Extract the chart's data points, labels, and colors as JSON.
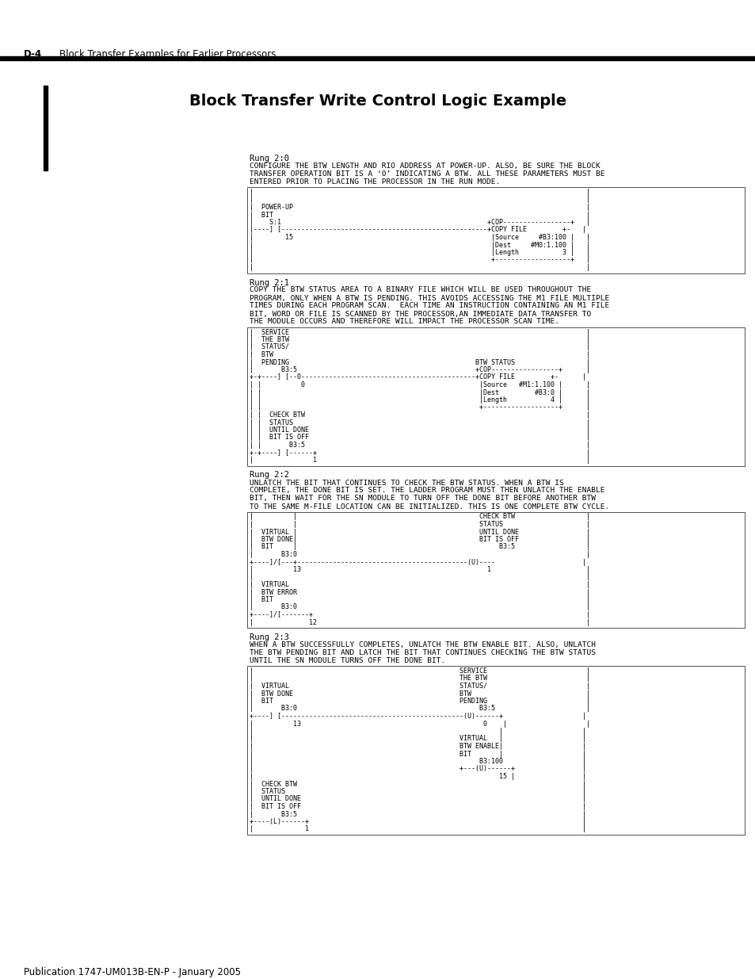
{
  "bg_color": "#ffffff",
  "header_label": "D-4",
  "header_desc": "Block Transfer Examples for Earlier Processors",
  "title": "Block Transfer Write Control Logic Example",
  "footer_text": "Publication 1747-UM013B-EN-P - January 2005",
  "rung0_desc": [
    "Rung 2:0",
    "CONFIGURE THE BTW LENGTH AND RIO ADDRESS AT POWER-UP. ALSO, BE SURE THE BLOCK",
    "TRANSFER OPERATION BIT IS A ‘0’ INDICATING A BTW. ALL THESE PARAMETERS MUST BE",
    "ENTERED PRIOR TO PLACING THE PROCESSOR IN THE RUN MODE."
  ],
  "rung0_ladder": [
    "|                                                                                    |",
    "|                                                                                    |",
    "|  POWER-UP                                                                          |",
    "|  BIT                                                                               |",
    "|    S:1                                                    +COP-----------------+   |",
    "|----] [----------------------------------------------------+COPY FILE         +-   |",
    "|        15                                                  |Source     #B3:100 |   |",
    "|                                                            |Dest     #M0:1.100 |   |",
    "|                                                            |Length           3 |   |",
    "|                                                            +-------------------+   |",
    "|                                                                                    |"
  ],
  "rung1_desc": [
    "Rung 2:1",
    "COPY THE BTW STATUS AREA TO A BINARY FILE WHICH WILL BE USED THROUGHOUT THE",
    "PROGRAM, ONLY WHEN A BTW IS PENDING. THIS AVOIDS ACCESSING THE M1 FILE MULTIPLE",
    "TIMES DURING EACH PROGRAM SCAN.  EACH TIME AN INSTRUCTION CONTAINING AN M1 FILE",
    "BIT, WORD OR FILE IS SCANNED BY THE PROCESSOR,AN IMMEDIATE DATA TRANSFER TO",
    "THE MODULE OCCURS AND THEREFORE WILL IMPACT THE PROCESSOR SCAN TIME."
  ],
  "rung1_ladder": [
    "|  SERVICE                                                                           |",
    "|  THE BTW                                                                           |",
    "|  STATUS/                                                                           |",
    "|  BTW                                                                               |",
    "|  PENDING                                               BTW STATUS                  |",
    "|       B3:5                                             +COP-----------------+      |",
    "+-+----] [--0--------------------------------------------+COPY FILE         +-      |",
    "| |          0                                            |Source   #M1:1.100 |      |",
    "| |                                                       |Dest         #B3:0 |      |",
    "| |                                                       |Length           4 |      |",
    "| |                                                       +-------------------+      |",
    "| |  CHECK BTW                                                                       |",
    "| |  STATUS                                                                          |",
    "| |  UNTIL DONE                                                                      |",
    "| |  BIT IS OFF                                                                      |",
    "| |       B3:5                                                                       |",
    "+-+----] [------+                                                                    |",
    "|               1                                                                    |"
  ],
  "rung2_desc": [
    "Rung 2:2",
    "UNLATCH THE BIT THAT CONTINUES TO CHECK THE BTW STATUS. WHEN A BTW IS",
    "COMPLETE, THE DONE BIT IS SET. THE LADDER PROGRAM MUST THEN UNLATCH THE ENABLE",
    "BIT, THEN WAIT FOR THE SN MODULE TO TURN OFF THE DONE BIT BEFORE ANOTHER BTW",
    "TO THE SAME M-FILE LOCATION CAN BE INITIALIZED. THIS IS ONE COMPLETE BTW CYCLE."
  ],
  "rung2_ladder": [
    "|          |                                              CHECK BTW                  |",
    "|          |                                              STATUS                     |",
    "|  VIRTUAL |                                              UNTIL DONE                 |",
    "|  BTW DONE|                                              BIT IS OFF                 |",
    "|  BIT     |                                                   B3:5                  |",
    "|       B3:0                                                                         |",
    "+----]/[---+-------------------------------------------(U)----                      |",
    "|          13                                               1                        |",
    "|                                                                                    |",
    "|  VIRTUAL                                                                           |",
    "|  BTW ERROR                                                                         |",
    "|  BIT                                                                               |",
    "|       B3:0                                                                         |",
    "+----]/[-------+                                                                     |",
    "|              12                                                                    |"
  ],
  "rung3_desc": [
    "Rung 2:3",
    "WHEN A BTW SUCCESSFULLY COMPLETES, UNLATCH THE BTW ENABLE BIT. ALSO, UNLATCH",
    "THE BTW PENDING BIT AND LATCH THE BIT THAT CONTINUES CHECKING THE BTW STATUS",
    "UNTIL THE SN MODULE TURNS OFF THE DONE BIT."
  ],
  "rung3_ladder": [
    "|                                                    SERVICE                         |",
    "|                                                    THE BTW                         |",
    "|  VIRTUAL                                           STATUS/                         |",
    "|  BTW DONE                                          BTW                             |",
    "|  BIT                                               PENDING                         |",
    "|       B3:0                                              B3:5                       |",
    "+----] [----------------------------------------------(U)------+                    |",
    "|          13                                              0    |                    |",
    "|                                                              |                    |",
    "|                                                    VIRTUAL   |                    |",
    "|                                                    BTW ENABLE|                    |",
    "|                                                    BIT       |                    |",
    "|                                                         B3:100                    |",
    "|                                                    +---(U)------+                 |",
    "|                                                              15 |                 |",
    "|  CHECK BTW                                                                        |",
    "|  STATUS                                                                           |",
    "|  UNTIL DONE                                                                       |",
    "|  BIT IS OFF                                                                       |",
    "|       B3:5                                                                        |",
    "+----(L)------+                                                                     |",
    "|             1                                                                     |"
  ]
}
